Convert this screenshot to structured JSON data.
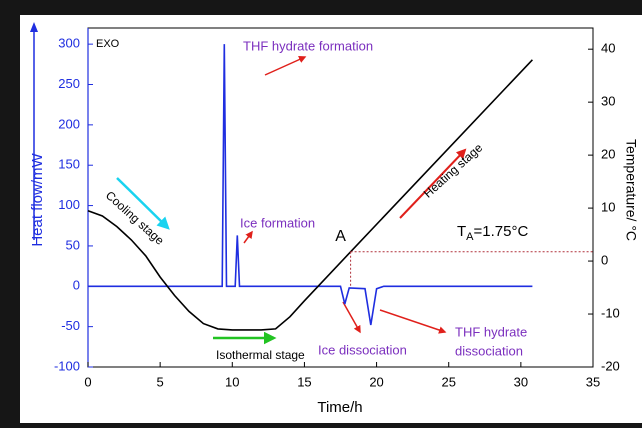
{
  "chart_data": {
    "type": "line",
    "xlabel": "Time/h",
    "ylabel": "Heat flow/mW",
    "y2label": "Temperature/ °C",
    "xlim": [
      0,
      35
    ],
    "xticks": [
      0,
      5,
      10,
      15,
      20,
      25,
      30,
      35
    ],
    "ylim": [
      -100,
      320
    ],
    "yticks": [
      -100,
      -50,
      0,
      50,
      100,
      150,
      200,
      250,
      300
    ],
    "y2lim": [
      -20,
      44
    ],
    "y2ticks": [
      -20,
      -10,
      0,
      10,
      20,
      30,
      40
    ],
    "series": [
      {
        "color": "#1f2ee0",
        "axis": "y",
        "x": [
          0,
          9.3,
          9.45,
          9.6,
          10.2,
          10.35,
          10.5,
          17.5,
          17.8,
          18.1,
          19.2,
          19.6,
          20.0,
          20.5,
          30.8
        ],
        "values": [
          0,
          0,
          300,
          0,
          0,
          63,
          0,
          0,
          -22,
          -2,
          -3,
          -48,
          -3,
          0,
          0
        ]
      },
      {
        "color": "#000000",
        "axis": "y2",
        "x": [
          0,
          1,
          2,
          3,
          4,
          5,
          6,
          7,
          8,
          9,
          10,
          12,
          13,
          14,
          15,
          16,
          18.2,
          30.8
        ],
        "values": [
          9.5,
          8.5,
          6.5,
          4,
          1,
          -3,
          -6.5,
          -9.5,
          -11.8,
          -12.8,
          -13,
          -13,
          -12.8,
          -10.5,
          -7.5,
          -4.6,
          1.75,
          38
        ]
      }
    ],
    "point": {
      "label": "A",
      "x": 18.2,
      "y": 1.75,
      "text": {
        "base": "T",
        "sub": "A",
        "rest": "=1.75°C"
      }
    },
    "annotations": [
      "EXO",
      "THF hydrate formation",
      "Ice formation",
      "Cooling stage",
      "Isothermal stage",
      "Heating stage",
      "Ice dissociation",
      "THF hydrate",
      "dissociation"
    ]
  }
}
